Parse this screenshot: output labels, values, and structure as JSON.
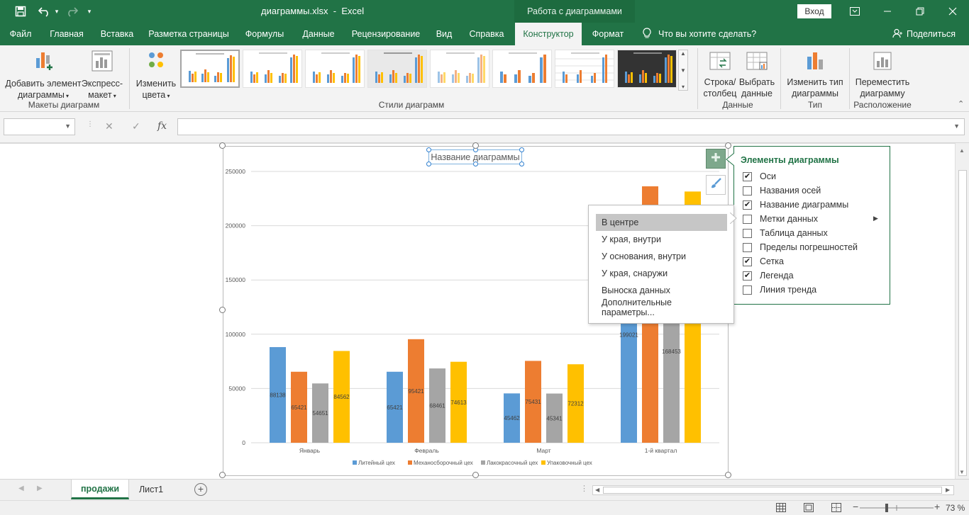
{
  "titlebar": {
    "filename": "диаграммы.xlsx",
    "separator": "-",
    "app": "Excel",
    "context_group": "Работа с диаграммами",
    "login": "Вход",
    "bg_color": "#217346"
  },
  "tabs": [
    {
      "label": "Файл"
    },
    {
      "label": "Главная"
    },
    {
      "label": "Вставка"
    },
    {
      "label": "Разметка страницы"
    },
    {
      "label": "Формулы"
    },
    {
      "label": "Данные"
    },
    {
      "label": "Рецензирование"
    },
    {
      "label": "Вид"
    },
    {
      "label": "Справка"
    },
    {
      "label": "Конструктор"
    },
    {
      "label": "Формат"
    }
  ],
  "tellme": "Что вы хотите сделать?",
  "share": "Поделиться",
  "ribbon": {
    "add_element_1": "Добавить элемент",
    "add_element_2": "диаграммы",
    "express_1": "Экспресс-",
    "express_2": "макет",
    "group_layouts": "Макеты диаграмм",
    "change_colors_1": "Изменить",
    "change_colors_2": "цвета",
    "group_styles": "Стили диаграмм",
    "switch_1": "Строка/",
    "switch_2": "столбец",
    "select_1": "Выбрать",
    "select_2": "данные",
    "group_data": "Данные",
    "change_type_1": "Изменить тип",
    "change_type_2": "диаграммы",
    "group_type": "Тип",
    "move_1": "Переместить",
    "move_2": "диаграмму",
    "group_location": "Расположение"
  },
  "formula_bar": {
    "cancel_glyph": "✕",
    "enter_glyph": "✓",
    "fx": "fx",
    "value": ""
  },
  "chart_data": {
    "type": "bar",
    "title": "Название диаграммы",
    "categories": [
      "Январь",
      "Февраль",
      "Март",
      "1-й квартал"
    ],
    "series": [
      {
        "name": "Литейный цех",
        "color": "#5b9bd5",
        "values": [
          88138,
          65421,
          45462,
          199021
        ]
      },
      {
        "name": "Механосборочный цех",
        "color": "#ed7d31",
        "values": [
          65421,
          95421,
          75431,
          236273
        ]
      },
      {
        "name": "Лакокрасочный цех",
        "color": "#a5a5a5",
        "values": [
          54651,
          68461,
          45341,
          168453
        ]
      },
      {
        "name": "Упаковочный цех",
        "color": "#ffc000",
        "values": [
          84562,
          74613,
          72312,
          231487
        ]
      }
    ],
    "visible_labels": [
      [
        "88138",
        "65421",
        "54651",
        "84562"
      ],
      [
        "65421",
        "95421",
        "68461",
        "74613"
      ],
      [
        "45462",
        "75431",
        "45341",
        "72312"
      ],
      [
        "199021",
        "",
        "168453",
        ""
      ]
    ],
    "y_ticks": [
      "0",
      "50000",
      "100000",
      "150000",
      "200000",
      "250000"
    ],
    "ylim": [
      0,
      250000
    ],
    "grid": true,
    "legend_position": "bottom"
  },
  "chart_elements": {
    "title": "Элементы диаграммы",
    "items": [
      {
        "label": "Оси",
        "checked": "✔"
      },
      {
        "label": "Названия осей",
        "checked": ""
      },
      {
        "label": "Название диаграммы",
        "checked": "✔"
      },
      {
        "label": "Метки данных",
        "checked": "",
        "submenu": "▶"
      },
      {
        "label": "Таблица данных",
        "checked": ""
      },
      {
        "label": "Пределы погрешностей",
        "checked": ""
      },
      {
        "label": "Сетка",
        "checked": "✔"
      },
      {
        "label": "Легенда",
        "checked": "✔"
      },
      {
        "label": "Линия тренда",
        "checked": ""
      }
    ]
  },
  "data_label_menu": [
    {
      "label": "В центре"
    },
    {
      "label": "У края, внутри"
    },
    {
      "label": "У основания, внутри"
    },
    {
      "label": "У края, снаружи"
    },
    {
      "label": "Выноска данных"
    },
    {
      "label": "Дополнительные параметры..."
    }
  ],
  "sheets": [
    {
      "label": "продажи",
      "active": true
    },
    {
      "label": "Лист1",
      "active": false
    }
  ],
  "status": {
    "zoom": "73 %",
    "zoom_fraction": 0.73
  }
}
